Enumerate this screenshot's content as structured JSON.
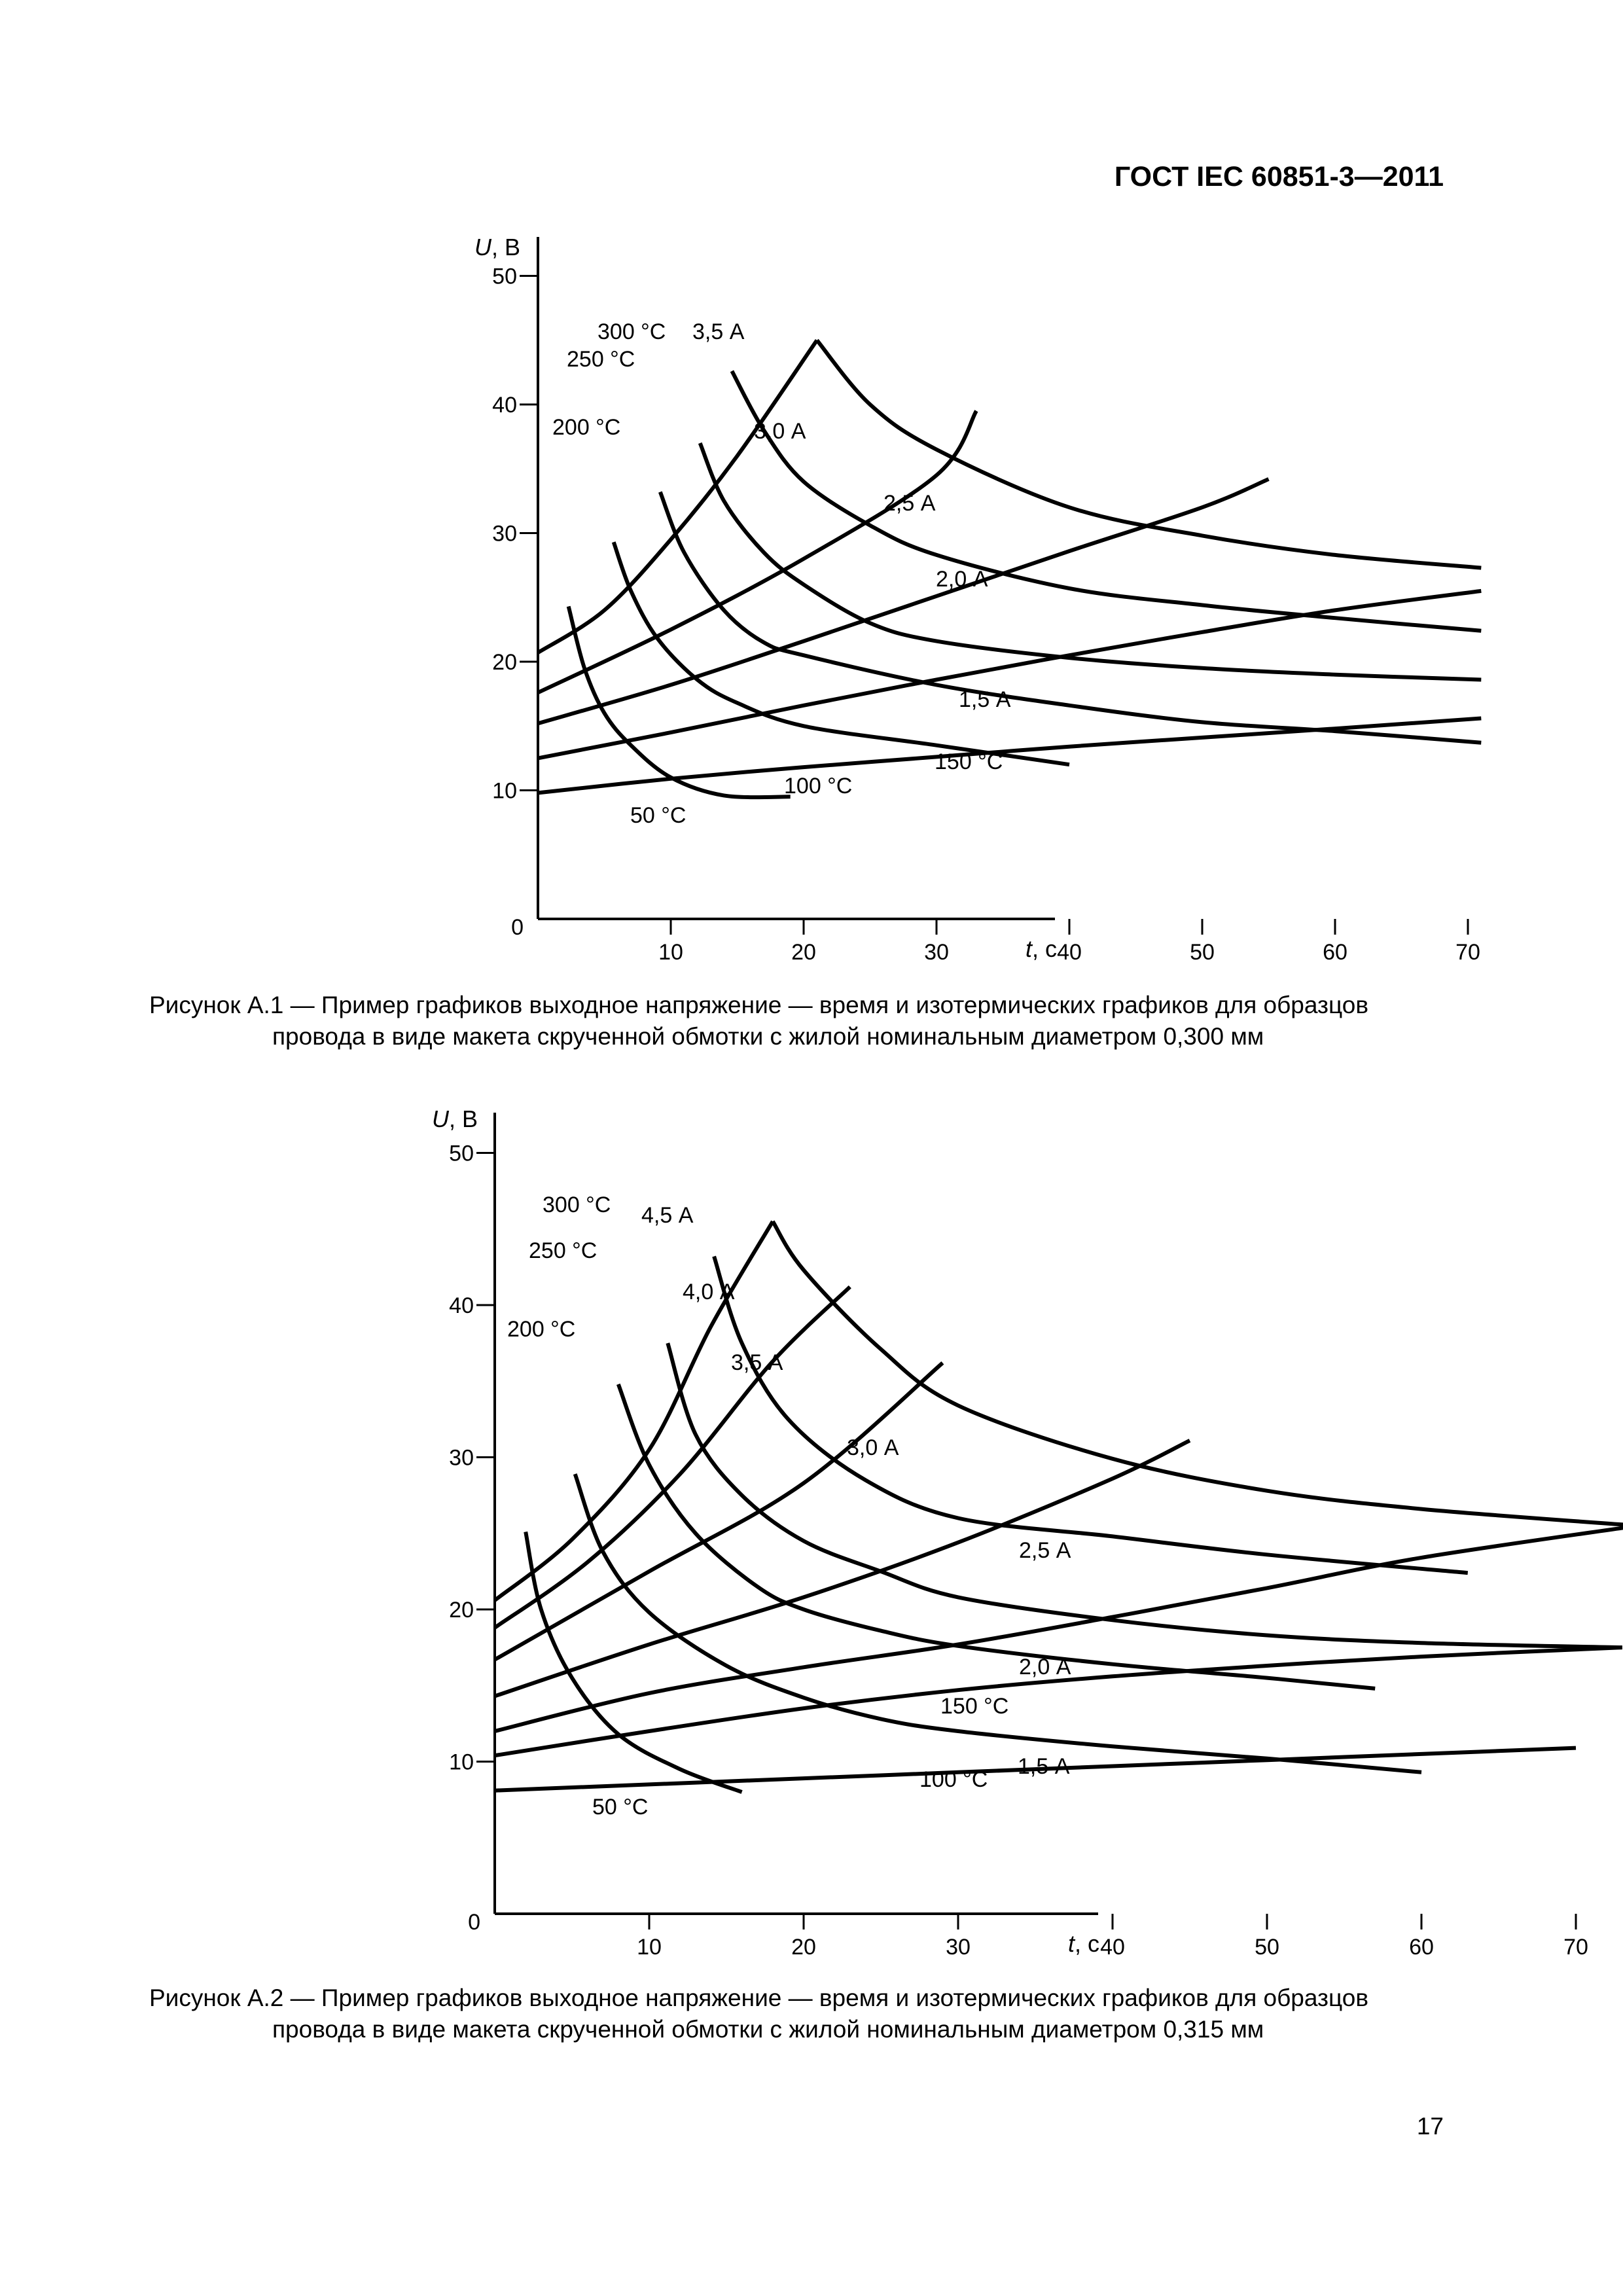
{
  "document": {
    "header": "ГОСТ IEC 60851-3—2011",
    "page_number": "17"
  },
  "figures": [
    {
      "caption_line1": "Рисунок  А.1 — Пример графиков выходное напряжение — время и изотермических графиков для образцов",
      "caption_line2": "провода в виде макета скрученной обмотки с жилой номинальным диаметром 0,300 мм",
      "ylabel": "U, В",
      "xlabel": "t, с"
    },
    {
      "caption_line1": "Рисунок  А.2 — Пример графиков выходное напряжение — время и изотермических графиков для образцов",
      "caption_line2": "провода в виде макета скрученной обмотки с жилой номинальным диаметром 0,315 мм",
      "ylabel": "U, В",
      "xlabel": "t, с"
    }
  ],
  "chart_data": [
    {
      "type": "line",
      "xlabel": "t, с",
      "ylabel": "U, В",
      "xlim": [
        0,
        78
      ],
      "ylim": [
        0,
        50
      ],
      "x_ticks": [
        10,
        20,
        30,
        40,
        50,
        60,
        70
      ],
      "y_ticks": [
        10,
        20,
        30,
        40,
        50
      ],
      "origin_label": "0",
      "series": [
        {
          "name": "1,5 А",
          "kind": "current",
          "points": [
            [
              0,
              9.8
            ],
            [
              10,
              10.9
            ],
            [
              20,
              11.8
            ],
            [
              30,
              12.6
            ],
            [
              40,
              13.4
            ],
            [
              50,
              14.1
            ],
            [
              60,
              14.8
            ],
            [
              71,
              15.6
            ]
          ]
        },
        {
          "name": "2,0 А",
          "kind": "current",
          "points": [
            [
              0,
              12.5
            ],
            [
              10,
              14.5
            ],
            [
              20,
              16.6
            ],
            [
              30,
              18.6
            ],
            [
              40,
              20.5
            ],
            [
              50,
              22.3
            ],
            [
              60,
              24.0
            ],
            [
              71,
              25.5
            ]
          ]
        },
        {
          "name": "2,5 А",
          "kind": "current",
          "points": [
            [
              0,
              15.2
            ],
            [
              10,
              18.2
            ],
            [
              20,
              21.6
            ],
            [
              30,
              25.1
            ],
            [
              40,
              28.6
            ],
            [
              50,
              32.0
            ],
            [
              55,
              34.2
            ]
          ]
        },
        {
          "name": "3,0 А",
          "kind": "current",
          "points": [
            [
              0,
              17.6
            ],
            [
              10,
              22.5
            ],
            [
              20,
              28.0
            ],
            [
              30,
              34.5
            ],
            [
              33,
              39.5
            ]
          ]
        },
        {
          "name": "3,5 А",
          "kind": "current",
          "points": [
            [
              0,
              20.7
            ],
            [
              5,
              24.0
            ],
            [
              10,
              29.5
            ],
            [
              15,
              36.0
            ],
            [
              21,
              45.0
            ]
          ]
        },
        {
          "name": "300 °С",
          "kind": "isotherm",
          "points": [
            [
              21,
              45.0
            ],
            [
              25,
              40.0
            ],
            [
              30,
              36.5
            ],
            [
              40,
              32.0
            ],
            [
              50,
              29.8
            ],
            [
              60,
              28.3
            ],
            [
              71,
              27.3
            ]
          ]
        },
        {
          "name": "250 °С",
          "kind": "isotherm",
          "points": [
            [
              14.6,
              42.6
            ],
            [
              17,
              38.0
            ],
            [
              20,
              34.0
            ],
            [
              25,
              30.6
            ],
            [
              30,
              28.3
            ],
            [
              40,
              25.7
            ],
            [
              50,
              24.4
            ],
            [
              60,
              23.4
            ],
            [
              71,
              22.4
            ]
          ]
        },
        {
          "name": "200 °С",
          "kind": "isotherm",
          "points": [
            [
              12.2,
              37.0
            ],
            [
              14,
              32.5
            ],
            [
              17,
              28.5
            ],
            [
              20,
              26.0
            ],
            [
              25,
              23.0
            ],
            [
              30,
              21.6
            ],
            [
              40,
              20.3
            ],
            [
              50,
              19.5
            ],
            [
              60,
              19.0
            ],
            [
              71,
              18.6
            ]
          ]
        },
        {
          "name": "150 °С",
          "kind": "isotherm",
          "points": [
            [
              9.2,
              33.2
            ],
            [
              11,
              28.5
            ],
            [
              14,
              24.0
            ],
            [
              17,
              21.5
            ],
            [
              20,
              20.5
            ],
            [
              30,
              18.2
            ],
            [
              40,
              16.6
            ],
            [
              50,
              15.3
            ],
            [
              60,
              14.6
            ],
            [
              71,
              13.7
            ]
          ]
        },
        {
          "name": "100 °С",
          "kind": "isotherm",
          "points": [
            [
              5.7,
              29.3
            ],
            [
              7,
              25.5
            ],
            [
              9,
              21.8
            ],
            [
              12,
              18.6
            ],
            [
              15,
              16.8
            ],
            [
              20,
              15.0
            ],
            [
              30,
              13.5
            ],
            [
              40,
              12.0
            ]
          ]
        },
        {
          "name": "50 °С",
          "kind": "isotherm",
          "points": [
            [
              2.3,
              24.3
            ],
            [
              3.5,
              19.5
            ],
            [
              5,
              16.0
            ],
            [
              7,
              13.5
            ],
            [
              10,
              11.0
            ],
            [
              14,
              9.6
            ],
            [
              19,
              9.5
            ]
          ]
        }
      ],
      "labels": [
        "300 °С",
        "3,5 А",
        "250 °С",
        "200 °С",
        "3,0 А",
        "2,5 А",
        "2,0 А",
        "1,5 А",
        "150 °С",
        "100 °С",
        "50 °С"
      ]
    },
    {
      "type": "line",
      "xlabel": "t, с",
      "ylabel": "U, В",
      "xlim": [
        0,
        78
      ],
      "ylim": [
        0,
        50
      ],
      "x_ticks": [
        10,
        20,
        30,
        40,
        50,
        60,
        70
      ],
      "y_ticks": [
        10,
        20,
        30,
        40,
        50
      ],
      "origin_label": "0",
      "series": [
        {
          "name": "1,5 А",
          "kind": "current",
          "points": [
            [
              0,
              8.1
            ],
            [
              10,
              8.5
            ],
            [
              20,
              8.9
            ],
            [
              30,
              9.3
            ],
            [
              40,
              9.7
            ],
            [
              50,
              10.1
            ],
            [
              60,
              10.5
            ],
            [
              70,
              10.9
            ]
          ]
        },
        {
          "name": "2,0 А",
          "kind": "current",
          "points": [
            [
              0,
              10.4
            ],
            [
              10,
              12.0
            ],
            [
              20,
              13.5
            ],
            [
              30,
              14.7
            ],
            [
              40,
              15.6
            ],
            [
              50,
              16.3
            ],
            [
              60,
              16.9
            ],
            [
              73,
              17.5
            ]
          ]
        },
        {
          "name": "2,5 А",
          "kind": "current",
          "points": [
            [
              0,
              12.0
            ],
            [
              10,
              14.5
            ],
            [
              20,
              16.2
            ],
            [
              30,
              17.7
            ],
            [
              40,
              19.5
            ],
            [
              50,
              21.4
            ],
            [
              60,
              23.4
            ],
            [
              74,
              25.5
            ]
          ]
        },
        {
          "name": "3,0 А",
          "kind": "current",
          "points": [
            [
              0,
              14.3
            ],
            [
              10,
              17.7
            ],
            [
              20,
              20.8
            ],
            [
              30,
              24.4
            ],
            [
              40,
              28.6
            ],
            [
              45,
              31.1
            ]
          ]
        },
        {
          "name": "3,5 А",
          "kind": "current",
          "points": [
            [
              0,
              16.7
            ],
            [
              10,
              22.5
            ],
            [
              20,
              28.3
            ],
            [
              29,
              36.2
            ]
          ]
        },
        {
          "name": "4,0 А",
          "kind": "current",
          "points": [
            [
              0,
              18.8
            ],
            [
              6,
              23.1
            ],
            [
              12,
              28.9
            ],
            [
              18,
              36.3
            ],
            [
              23,
              41.2
            ]
          ]
        },
        {
          "name": "4,5 А",
          "kind": "current",
          "points": [
            [
              0,
              20.6
            ],
            [
              5,
              24.6
            ],
            [
              10,
              30.5
            ],
            [
              14,
              38.6
            ],
            [
              18,
              45.5
            ]
          ]
        },
        {
          "name": "300 °С",
          "kind": "isotherm",
          "points": [
            [
              18,
              45.5
            ],
            [
              20,
              42.3
            ],
            [
              25,
              37.1
            ],
            [
              30,
              33.4
            ],
            [
              40,
              29.9
            ],
            [
              50,
              27.8
            ],
            [
              60,
              26.6
            ],
            [
              74,
              25.5
            ]
          ]
        },
        {
          "name": "250 °С",
          "kind": "isotherm",
          "points": [
            [
              14.2,
              43.2
            ],
            [
              16,
              37.5
            ],
            [
              19,
              32.5
            ],
            [
              24,
              28.5
            ],
            [
              30,
              26.0
            ],
            [
              40,
              24.8
            ],
            [
              50,
              23.6
            ],
            [
              63,
              22.4
            ]
          ]
        },
        {
          "name": "200 °С",
          "kind": "isotherm",
          "points": [
            [
              11.2,
              37.5
            ],
            [
              13,
              31.5
            ],
            [
              16,
              27.5
            ],
            [
              20,
              24.5
            ],
            [
              25,
              22.5
            ],
            [
              30,
              20.8
            ],
            [
              40,
              19.3
            ],
            [
              50,
              18.3
            ],
            [
              60,
              17.8
            ],
            [
              73,
              17.5
            ]
          ]
        },
        {
          "name": "150 °С",
          "kind": "isotherm",
          "points": [
            [
              8,
              34.8
            ],
            [
              10,
              29.5
            ],
            [
              13,
              25.0
            ],
            [
              17,
              21.5
            ],
            [
              20,
              20.0
            ],
            [
              25,
              18.6
            ],
            [
              30,
              17.6
            ],
            [
              40,
              16.4
            ],
            [
              50,
              15.5
            ],
            [
              57,
              14.8
            ]
          ]
        },
        {
          "name": "100 °С",
          "kind": "isotherm",
          "points": [
            [
              5.2,
              28.9
            ],
            [
              7,
              23.8
            ],
            [
              10,
              19.8
            ],
            [
              15,
              16.3
            ],
            [
              20,
              14.2
            ],
            [
              25,
              12.8
            ],
            [
              30,
              12.0
            ],
            [
              40,
              11.0
            ],
            [
              50,
              10.2
            ],
            [
              60,
              9.3
            ]
          ]
        },
        {
          "name": "50 °С",
          "kind": "isotherm",
          "points": [
            [
              2.0,
              25.1
            ],
            [
              3,
              20.0
            ],
            [
              5,
              15.5
            ],
            [
              8,
              11.8
            ],
            [
              12,
              9.5
            ],
            [
              16,
              8.0
            ]
          ]
        }
      ],
      "labels": [
        "300 °С",
        "4,5 А",
        "250 °С",
        "4,0 А",
        "200 °С",
        "3,5 А",
        "3,0 А",
        "2,5 А",
        "2,0 А",
        "150 °С",
        "1,5 А",
        "100 °С",
        "50 °С"
      ]
    }
  ]
}
